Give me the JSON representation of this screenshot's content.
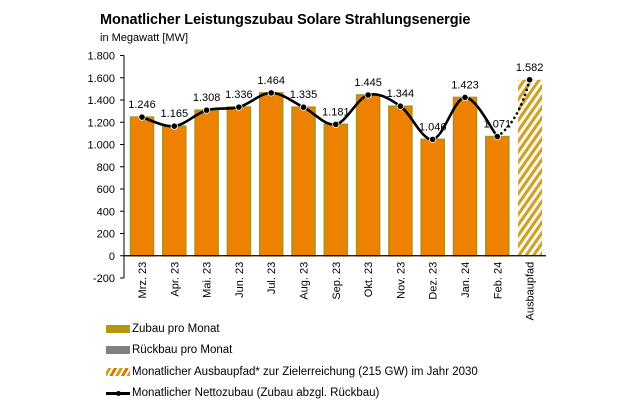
{
  "chart_data": {
    "type": "bar",
    "title": "Monatlicher Leistungszubau Solare Strahlungsenergie",
    "subtitle": "in Megawatt [MW]",
    "xlabel": "",
    "ylabel": "",
    "ylim": [
      -200,
      1800
    ],
    "yticks": [
      -200,
      0,
      200,
      400,
      600,
      800,
      1000,
      1200,
      1400,
      1600,
      1800
    ],
    "ytick_labels": [
      "-200",
      "0",
      "200",
      "400",
      "600",
      "800",
      "1.000",
      "1.200",
      "1.400",
      "1.600",
      "1.800"
    ],
    "grid": false,
    "categories": [
      "Mrz. 23",
      "Apr. 23",
      "Mai. 23",
      "Jun. 23",
      "Jul. 23",
      "Aug. 23",
      "Sep. 23",
      "Okt. 23",
      "Nov. 23",
      "Dez. 23",
      "Jan. 24",
      "Feb. 24",
      "Ausbaupfad"
    ],
    "series": [
      {
        "name": "Zubau pro Monat",
        "type": "bar",
        "values": [
          1246,
          1165,
          1308,
          1336,
          1464,
          1335,
          1181,
          1445,
          1344,
          1046,
          1423,
          1071,
          null
        ]
      },
      {
        "name": "Rückbau pro Monat",
        "type": "bar",
        "values": [
          0,
          0,
          0,
          0,
          0,
          0,
          0,
          0,
          0,
          0,
          0,
          0,
          null
        ]
      },
      {
        "name": "Monatlicher Ausbaupfad* zur Zielerreichung (215 GW) im Jahr 2030",
        "type": "bar-hatched",
        "values": [
          null,
          null,
          null,
          null,
          null,
          null,
          null,
          null,
          null,
          null,
          null,
          null,
          1582
        ]
      },
      {
        "name": "Monatlicher Nettozubau (Zubau abzgl. Rückbau)",
        "type": "line",
        "values": [
          1246,
          1165,
          1308,
          1336,
          1464,
          1335,
          1181,
          1445,
          1344,
          1046,
          1423,
          1071,
          1582
        ]
      }
    ],
    "data_labels": [
      "1.246",
      "1.165",
      "1.308",
      "1.336",
      "1.464",
      "1.335",
      "1.181",
      "1.445",
      "1.344",
      "1.046",
      "1.423",
      "1.071",
      "1.582"
    ],
    "legend_position": "bottom-left",
    "colors": {
      "bar_fill": "#ee8100",
      "bar_edge": "#a89520",
      "zubau_swatch": "#b8960c",
      "rueckbau_swatch": "#7f7f87",
      "hatch": "#c9a227",
      "line": "#000000"
    }
  },
  "legend": {
    "items": [
      {
        "label": "Zubau pro Monat"
      },
      {
        "label": "Rückbau pro Monat"
      },
      {
        "label": "Monatlicher Ausbaupfad* zur Zielerreichung (215 GW) im Jahr 2030"
      },
      {
        "label": "Monatlicher Nettozubau (Zubau abzgl. Rückbau)"
      }
    ]
  }
}
